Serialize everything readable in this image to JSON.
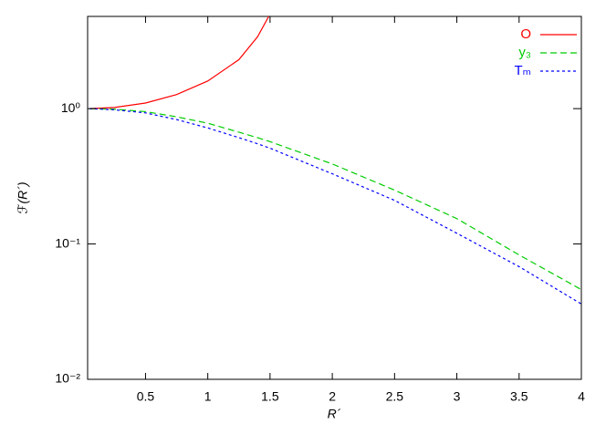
{
  "chart_data": {
    "type": "line",
    "xlabel": "R´",
    "ylabel": "ℱ(R´)",
    "x": [
      0.05,
      0.25,
      0.5,
      0.75,
      1,
      1.25,
      1.4,
      1.5,
      2,
      2.5,
      3,
      3.5,
      4
    ],
    "series": [
      {
        "name": "O",
        "color": "#ff0000",
        "dash": "solid",
        "values": [
          1,
          1.02,
          1.1,
          1.27,
          1.6,
          2.3,
          3.4,
          5.0,
          null,
          null,
          null,
          null,
          null
        ]
      },
      {
        "name": "y₃",
        "color": "#00cc00",
        "dash": "dashed",
        "values": [
          1,
          0.99,
          0.95,
          0.87,
          0.78,
          0.67,
          0.61,
          0.57,
          0.39,
          0.25,
          0.154,
          0.083,
          0.046
        ]
      },
      {
        "name": "Tₘ",
        "color": "#0000ff",
        "dash": "dotted",
        "values": [
          1,
          0.98,
          0.93,
          0.83,
          0.72,
          0.61,
          0.55,
          0.51,
          0.33,
          0.21,
          0.12,
          0.068,
          0.036
        ]
      }
    ],
    "xlim": [
      0.035,
      4
    ],
    "ylim": [
      0.01,
      4.8
    ],
    "xticks": [
      0.5,
      1,
      1.5,
      2,
      2.5,
      3,
      3.5,
      4
    ],
    "yticks": [
      {
        "value": 0.01,
        "label": "10⁻²"
      },
      {
        "value": 0.1,
        "label": "10⁻¹"
      },
      {
        "value": 1,
        "label": "10⁰"
      }
    ],
    "log_y": true,
    "grid": false,
    "legend": "top-right"
  }
}
